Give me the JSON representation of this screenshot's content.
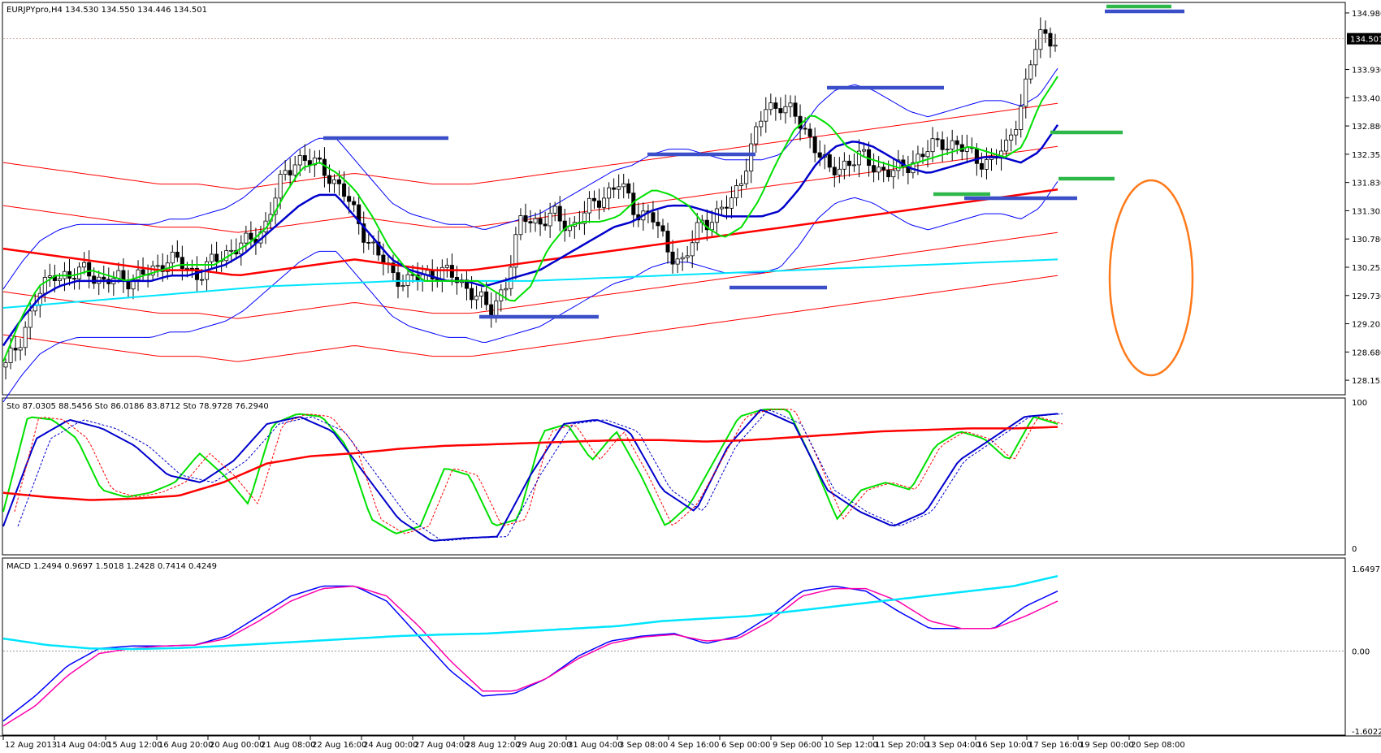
{
  "window": {
    "header": "EURJPYpro,H4  134.530 134.550 134.446 134.501"
  },
  "colors": {
    "background": "#ffffff",
    "bull_candle": "#ffffff",
    "bear_candle": "#000000",
    "wick": "#000000",
    "bollinger": "#0000ff",
    "envelope": "#ff0000",
    "ma_fast": "#00e000",
    "ma_mid": "#0000cc",
    "ma_slow": "#ff0000",
    "ma_long": "#00e5ff",
    "resistance_marks": "#3a4fc8",
    "support_marks": "#2eb84a",
    "annotation_ellipse": "#ff7a1a",
    "stoch_main": "#00e000",
    "stoch_signal": "#ff0000",
    "stoch_blue": "#0000cc",
    "macd_main": "#0000ff",
    "macd_signal": "#ff00aa",
    "macd_cyan": "#00e5ff"
  },
  "chart_data": [
    {
      "type": "candlestick",
      "panel": "price",
      "symbol": "EURJPYpro",
      "timeframe": "H4",
      "last_price": "134.501",
      "ylim": [
        127.9,
        135.1
      ],
      "y_ticks": [
        "134.980",
        "134.501",
        "133.930",
        "133.405",
        "132.880",
        "132.355",
        "131.830",
        "131.305",
        "130.780",
        "130.255",
        "129.730",
        "129.205",
        "128.680",
        "128.155"
      ],
      "x_labels": [
        "12 Aug 2013",
        "14 Aug 04:00",
        "15 Aug 12:00",
        "16 Aug 20:00",
        "20 Aug 00:00",
        "21 Aug 08:00",
        "22 Aug 16:00",
        "24 Aug 00:00",
        "27 Aug 04:00",
        "28 Aug 12:00",
        "29 Aug 20:00",
        "31 Aug 04:00",
        "3 Sep 08:00",
        "4 Sep 16:00",
        "6 Sep 00:00",
        "9 Sep 06:00",
        "10 Sep 12:00",
        "11 Sep 20:00",
        "13 Sep 04:00",
        "16 Sep 10:00",
        "17 Sep 16:00",
        "19 Sep 00:00",
        "20 Sep 08:00"
      ],
      "close_anchors": [
        128.4,
        129.0,
        129.7,
        130.2,
        130.0,
        130.3,
        129.9,
        130.1,
        130.0,
        130.2,
        130.4,
        130.3,
        130.1,
        130.4,
        130.6,
        130.7,
        131.0,
        131.8,
        132.3,
        132.2,
        132.0,
        131.6,
        131.0,
        130.5,
        130.1,
        130.0,
        130.1,
        130.2,
        130.0,
        129.8,
        129.4,
        130.0,
        131.2,
        131.1,
        131.2,
        131.0,
        131.3,
        131.6,
        131.8,
        131.3,
        131.2,
        130.6,
        130.3,
        131.1,
        131.2,
        131.5,
        132.3,
        133.2,
        133.3,
        133.0,
        132.6,
        132.0,
        132.2,
        132.3,
        132.1,
        132.0,
        132.2,
        132.4,
        132.6,
        132.5,
        132.3,
        132.2,
        132.5,
        133.4,
        134.6,
        134.5
      ],
      "series": [
        {
          "name": "",
          "style": "ma_fast",
          "values": [
            128.5,
            129.3,
            129.9,
            130.1,
            130.1,
            130.2,
            130.1,
            130.0,
            130.1,
            130.2,
            130.3,
            130.3,
            130.3,
            130.5,
            130.7,
            131.0,
            131.6,
            132.1,
            132.2,
            132.0,
            131.7,
            131.2,
            130.6,
            130.2,
            130.0,
            130.0,
            130.0,
            130.0,
            129.8,
            129.6,
            129.9,
            130.6,
            131.0,
            131.1,
            131.1,
            131.2,
            131.5,
            131.7,
            131.6,
            131.4,
            131.0,
            130.8,
            131.0,
            131.5,
            132.2,
            132.8,
            133.1,
            132.9,
            132.5,
            132.3,
            132.2,
            132.1,
            132.2,
            132.3,
            132.4,
            132.5,
            132.4,
            132.3,
            132.5,
            133.3,
            133.8
          ]
        },
        {
          "name": "",
          "style": "ma_mid",
          "values": [
            128.8,
            129.3,
            129.7,
            129.9,
            130.0,
            130.0,
            130.0,
            130.0,
            130.0,
            130.1,
            130.1,
            130.2,
            130.3,
            130.5,
            130.8,
            131.1,
            131.4,
            131.6,
            131.6,
            131.2,
            130.8,
            130.4,
            130.2,
            130.1,
            130.0,
            130.0,
            129.9,
            130.0,
            130.1,
            130.2,
            130.4,
            130.6,
            130.8,
            131.0,
            131.1,
            131.3,
            131.4,
            131.4,
            131.3,
            131.2,
            131.2,
            131.2,
            131.3,
            131.7,
            132.2,
            132.5,
            132.6,
            132.5,
            132.3,
            132.1,
            132.0,
            132.1,
            132.2,
            132.3,
            132.3,
            132.2,
            132.4,
            132.9
          ]
        },
        {
          "name": "",
          "style": "ma_slow",
          "values": [
            130.6,
            130.5,
            130.4,
            130.3,
            130.2,
            130.2,
            130.1,
            130.2,
            130.3,
            130.4,
            130.3,
            130.2,
            130.2,
            130.3,
            130.4,
            130.5,
            130.6,
            130.7,
            130.8,
            130.9,
            131.0,
            131.1,
            131.2,
            131.3,
            131.4,
            131.5,
            131.6,
            131.7
          ]
        },
        {
          "name": "",
          "style": "ma_long",
          "values": [
            129.5,
            129.6,
            129.7,
            129.8,
            129.9,
            129.95,
            130.0,
            130.0,
            130.0,
            130.05,
            130.1,
            130.15,
            130.2,
            130.25,
            130.3,
            130.35,
            130.4
          ]
        }
      ]
    },
    {
      "type": "line",
      "panel": "stochastic",
      "header": "Sto 87.0305 88.5456  Sto 86.0186 83.8712  Sto 78.9728 76.2940",
      "ylim": [
        0,
        100
      ],
      "y_ticks": [
        "100",
        "0"
      ],
      "series": [
        {
          "name": "",
          "style": "stoch_main",
          "values": [
            25,
            90,
            88,
            75,
            40,
            35,
            38,
            45,
            65,
            50,
            30,
            85,
            92,
            90,
            70,
            20,
            10,
            15,
            55,
            50,
            15,
            20,
            80,
            85,
            60,
            80,
            50,
            15,
            30,
            60,
            90,
            95,
            95,
            60,
            20,
            40,
            45,
            40,
            70,
            80,
            75,
            60,
            90,
            85
          ]
        },
        {
          "name": "",
          "style": "stoch_blue",
          "values": [
            15,
            75,
            88,
            82,
            70,
            50,
            45,
            60,
            85,
            90,
            80,
            50,
            20,
            5,
            7,
            8,
            50,
            85,
            88,
            80,
            40,
            25,
            70,
            95,
            85,
            40,
            25,
            15,
            25,
            60,
            75,
            90,
            92
          ]
        },
        {
          "name": "",
          "style": "stoch_signal",
          "values": [
            38,
            35,
            33,
            34,
            36,
            45,
            58,
            63,
            65,
            68,
            70,
            71,
            72,
            73,
            74,
            74,
            73,
            74,
            76,
            78,
            80,
            81,
            82,
            82,
            83
          ]
        }
      ]
    },
    {
      "type": "line",
      "panel": "macd",
      "header": "MACD 1.2494 0.9697 1.5018 1.2428 0.7414 0.4249",
      "ylim": [
        -1.6022,
        1.6497
      ],
      "y_ticks": [
        "1.6497",
        "0.00",
        "-1.6022"
      ],
      "series": [
        {
          "name": "",
          "style": "macd_main",
          "values": [
            -1.4,
            -0.9,
            -0.3,
            0.05,
            0.1,
            0.1,
            0.12,
            0.3,
            0.7,
            1.1,
            1.3,
            1.3,
            1.0,
            0.3,
            -0.4,
            -0.9,
            -0.85,
            -0.55,
            -0.1,
            0.2,
            0.3,
            0.35,
            0.15,
            0.3,
            0.7,
            1.2,
            1.3,
            1.2,
            0.8,
            0.45,
            0.45,
            0.45,
            0.9,
            1.2
          ]
        },
        {
          "name": "",
          "style": "macd_signal",
          "values": [
            -1.5,
            -1.1,
            -0.5,
            -0.05,
            0.05,
            0.1,
            0.12,
            0.25,
            0.6,
            1.0,
            1.25,
            1.3,
            1.1,
            0.5,
            -0.2,
            -0.8,
            -0.8,
            -0.55,
            -0.15,
            0.15,
            0.28,
            0.33,
            0.2,
            0.25,
            0.6,
            1.1,
            1.25,
            1.25,
            1.0,
            0.6,
            0.45,
            0.45,
            0.7,
            1.0
          ]
        },
        {
          "name": "",
          "style": "macd_cyan",
          "values": [
            0.25,
            0.12,
            0.05,
            0.04,
            0.06,
            0.1,
            0.15,
            0.2,
            0.25,
            0.3,
            0.33,
            0.35,
            0.4,
            0.45,
            0.5,
            0.6,
            0.65,
            0.7,
            0.8,
            0.9,
            1.0,
            1.1,
            1.2,
            1.3,
            1.5
          ]
        }
      ]
    }
  ]
}
